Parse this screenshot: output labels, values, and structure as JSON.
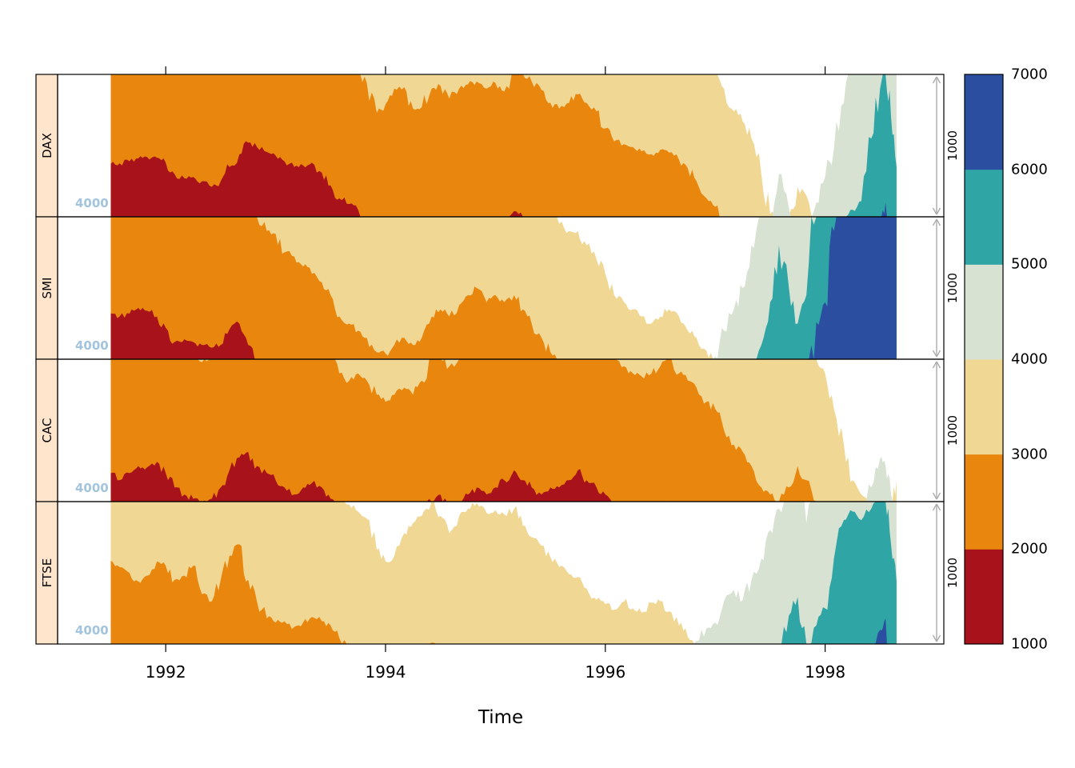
{
  "figure": {
    "background": "#ffffff",
    "strip_fill": "#ffe5cc",
    "strip_border": "#000000",
    "panel_border": "#000000",
    "origin_label_color": "#a2c4dc",
    "arrow_color": "#acacac",
    "axis_color": "#000000"
  },
  "chart_data": {
    "type": "horizon",
    "title": "",
    "xlabel": "Time",
    "x_ticks": [
      1992,
      1994,
      1996,
      1998
    ],
    "x_axis_range": [
      1991.016,
      1999.08
    ],
    "origin": 4000,
    "band_height": 1000,
    "origin_label": "4000",
    "scale_label": "1000",
    "bands_below": [
      {
        "range": [
          3000,
          4000
        ],
        "color": "#f0d794"
      },
      {
        "range": [
          2000,
          3000
        ],
        "color": "#e8860d"
      },
      {
        "range": [
          1000,
          2000
        ],
        "color": "#a8121a"
      }
    ],
    "bands_above": [
      {
        "range": [
          4000,
          5000
        ],
        "color": "#d7e2d2"
      },
      {
        "range": [
          5000,
          6000
        ],
        "color": "#2fa5a5"
      },
      {
        "range": [
          6000,
          7000
        ],
        "color": "#2b4ea1"
      }
    ],
    "colorkey": {
      "ticks": [
        1000,
        2000,
        3000,
        4000,
        5000,
        6000,
        7000
      ],
      "colors_bottom_to_top": [
        "#a8121a",
        "#e8860d",
        "#f0d794",
        "#d7e2d2",
        "#2fa5a5",
        "#2b4ea1"
      ]
    },
    "x": [
      1991.5,
      1991.58,
      1991.67,
      1991.75,
      1991.83,
      1991.92,
      1992.0,
      1992.08,
      1992.17,
      1992.25,
      1992.33,
      1992.42,
      1992.5,
      1992.58,
      1992.67,
      1992.75,
      1992.83,
      1992.92,
      1993.0,
      1993.08,
      1993.17,
      1993.25,
      1993.33,
      1993.42,
      1993.5,
      1993.58,
      1993.67,
      1993.75,
      1993.83,
      1993.92,
      1994.0,
      1994.08,
      1994.17,
      1994.25,
      1994.33,
      1994.42,
      1994.5,
      1994.58,
      1994.67,
      1994.75,
      1994.83,
      1994.92,
      1995.0,
      1995.08,
      1995.17,
      1995.25,
      1995.33,
      1995.42,
      1995.5,
      1995.58,
      1995.67,
      1995.75,
      1995.83,
      1995.92,
      1996.0,
      1996.08,
      1996.17,
      1996.25,
      1996.33,
      1996.42,
      1996.5,
      1996.58,
      1996.67,
      1996.75,
      1996.83,
      1996.92,
      1997.0,
      1997.08,
      1997.17,
      1997.25,
      1997.33,
      1997.42,
      1997.5,
      1997.58,
      1997.67,
      1997.75,
      1997.83,
      1997.92,
      1998.0,
      1998.08,
      1998.17,
      1998.25,
      1998.33,
      1998.42,
      1998.5,
      1998.55,
      1998.6,
      1998.65
    ],
    "series": [
      {
        "name": "DAX",
        "values": [
          1628,
          1625,
          1610,
          1590,
          1580,
          1585,
          1620,
          1700,
          1730,
          1720,
          1750,
          1790,
          1750,
          1650,
          1560,
          1480,
          1510,
          1545,
          1570,
          1610,
          1650,
          1640,
          1620,
          1690,
          1780,
          1870,
          1910,
          1950,
          2060,
          2270,
          2210,
          2100,
          2090,
          2240,
          2230,
          2100,
          2080,
          2170,
          2100,
          2070,
          2050,
          2100,
          2060,
          2120,
          1960,
          2000,
          2050,
          2110,
          2200,
          2240,
          2200,
          2140,
          2200,
          2260,
          2380,
          2470,
          2490,
          2510,
          2540,
          2560,
          2530,
          2550,
          2600,
          2660,
          2750,
          2870,
          2930,
          3100,
          3260,
          3330,
          3450,
          3700,
          3980,
          4300,
          4060,
          3790,
          3850,
          4100,
          4280,
          4480,
          4800,
          5050,
          5110,
          5550,
          5900,
          6100,
          5700,
          5350
        ]
      },
      {
        "name": "SMI",
        "values": [
          1678,
          1700,
          1680,
          1640,
          1660,
          1700,
          1780,
          1880,
          1860,
          1880,
          1900,
          1920,
          1900,
          1790,
          1750,
          1900,
          2000,
          2100,
          2120,
          2250,
          2280,
          2350,
          2400,
          2460,
          2550,
          2700,
          2750,
          2800,
          2850,
          2950,
          2960,
          2900,
          2850,
          2900,
          2850,
          2700,
          2650,
          2700,
          2620,
          2550,
          2500,
          2600,
          2550,
          2600,
          2550,
          2650,
          2750,
          2850,
          2950,
          3050,
          3100,
          3100,
          3200,
          3300,
          3400,
          3550,
          3600,
          3650,
          3700,
          3750,
          3700,
          3650,
          3700,
          3800,
          3850,
          3940,
          4020,
          4200,
          4350,
          4500,
          4800,
          5100,
          5400,
          5800,
          5500,
          5250,
          5450,
          6260,
          6400,
          6900,
          7300,
          7600,
          7900,
          8100,
          8300,
          8200,
          7800,
          7300
        ]
      },
      {
        "name": "CAC",
        "values": [
          1800,
          1850,
          1800,
          1750,
          1760,
          1720,
          1800,
          1900,
          1950,
          1980,
          2020,
          1980,
          1900,
          1780,
          1690,
          1650,
          1750,
          1800,
          1850,
          1900,
          1950,
          1900,
          1870,
          1900,
          1980,
          2100,
          2150,
          2100,
          2150,
          2250,
          2300,
          2250,
          2200,
          2250,
          2150,
          2000,
          1950,
          2050,
          2000,
          1950,
          1900,
          1950,
          1900,
          1850,
          1780,
          1850,
          1900,
          1950,
          1900,
          1900,
          1850,
          1780,
          1850,
          1900,
          1950,
          2000,
          2050,
          2100,
          2120,
          2100,
          2050,
          2000,
          2100,
          2150,
          2200,
          2300,
          2350,
          2500,
          2600,
          2650,
          2750,
          2900,
          2950,
          3000,
          2900,
          2750,
          2850,
          3000,
          3100,
          3350,
          3600,
          3850,
          3950,
          4100,
          4300,
          4250,
          4050,
          3850
        ]
      },
      {
        "name": "FTSE",
        "values": [
          2414,
          2460,
          2500,
          2560,
          2520,
          2420,
          2450,
          2550,
          2520,
          2450,
          2650,
          2700,
          2550,
          2380,
          2300,
          2550,
          2700,
          2820,
          2850,
          2840,
          2880,
          2850,
          2810,
          2840,
          2870,
          2960,
          3020,
          3070,
          3120,
          3340,
          3420,
          3380,
          3220,
          3150,
          3100,
          2990,
          3100,
          3220,
          3100,
          3050,
          3010,
          3080,
          3060,
          3090,
          3050,
          3170,
          3250,
          3310,
          3390,
          3460,
          3510,
          3530,
          3610,
          3690,
          3720,
          3760,
          3700,
          3750,
          3780,
          3710,
          3700,
          3770,
          3870,
          3950,
          4020,
          4110,
          4150,
          4300,
          4380,
          4310,
          4450,
          4600,
          4800,
          4950,
          5200,
          5330,
          4850,
          5130,
          5250,
          5600,
          5870,
          5930,
          5870,
          5950,
          6100,
          6179,
          5700,
          5440
        ]
      }
    ]
  }
}
